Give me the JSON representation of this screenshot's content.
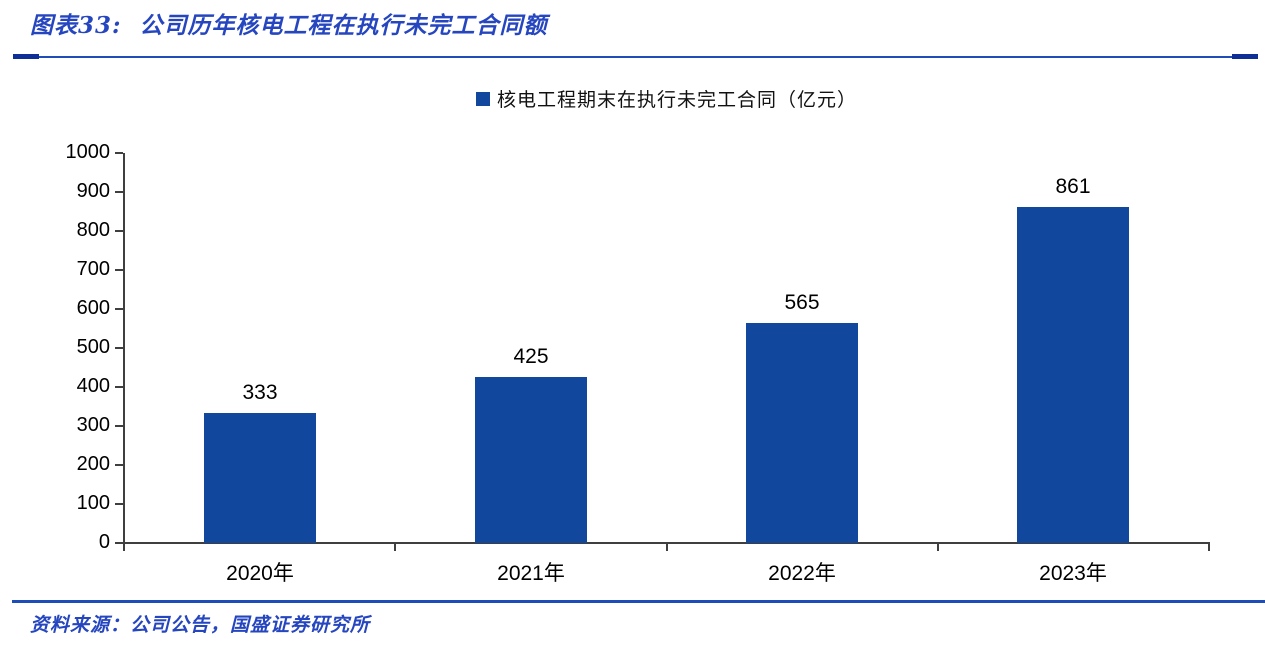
{
  "figure": {
    "title": "图表33:  公司历年核电工程在执行未完工合同额",
    "source": "资料来源：公司公告，国盛证券研究所"
  },
  "legend": {
    "label": "核电工程期末在执行未完工合同（亿元）"
  },
  "colors": {
    "bar": "#12479E",
    "accent_text": "#2646C0",
    "rule": "#1E4DB7",
    "rule_ends": "#0E2F96",
    "axis": "#3F3F3F",
    "label_text": "#000000"
  },
  "chart_data": {
    "type": "bar",
    "title": "核电工程期末在执行未完工合同（亿元）",
    "categories": [
      "2020年",
      "2021年",
      "2022年",
      "2023年"
    ],
    "values": [
      333,
      425,
      565,
      861
    ],
    "data_labels": [
      "333",
      "425",
      "565",
      "861"
    ],
    "xlabel": "",
    "ylabel": "",
    "ylim": [
      0,
      1000
    ],
    "ytick_step": 100,
    "ytick_labels": [
      "0",
      "100",
      "200",
      "300",
      "400",
      "500",
      "600",
      "700",
      "800",
      "900",
      "1000"
    ],
    "grid": false,
    "legend_position": "top-center",
    "bar_color": "#12479E"
  }
}
